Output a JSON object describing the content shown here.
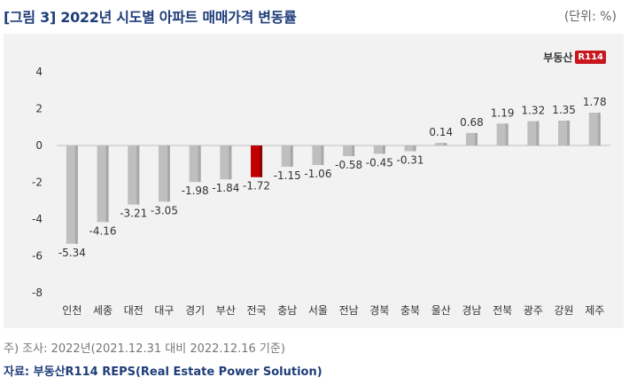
{
  "title": "[그림 3] 2022년 시도별 아파트 매매가격 변동률",
  "unit": "(단위: %)",
  "logo": {
    "text": "부동산",
    "box": "R114"
  },
  "note": "주) 조사: 2022년(2021.12.31 대비 2022.12.16 기준)",
  "source": "자료: 부동산R114 REPS(Real Estate Power Solution)",
  "colors": {
    "bar": "#bfbfbf",
    "highlight": "#c00000",
    "title": "#1f3d7a"
  },
  "chart_data": {
    "type": "bar",
    "categories": [
      "인천",
      "세종",
      "대전",
      "대구",
      "경기",
      "부산",
      "전국",
      "충남",
      "서울",
      "전남",
      "경북",
      "충북",
      "울산",
      "경남",
      "전북",
      "광주",
      "강원",
      "제주"
    ],
    "values": [
      -5.34,
      -4.16,
      -3.21,
      -3.05,
      -1.98,
      -1.84,
      -1.72,
      -1.15,
      -1.06,
      -0.58,
      -0.45,
      -0.31,
      0.14,
      0.68,
      1.19,
      1.32,
      1.35,
      1.78
    ],
    "labels": [
      "-5.34",
      "-4.16",
      "-3.21",
      "-3.05",
      "-1.98",
      "-1.84",
      "-1.72",
      "-1.15",
      "-1.06",
      "-0.58",
      "-0.45",
      "-0.31",
      "0.14",
      "0.68",
      "1.19",
      "1.32",
      "1.35",
      "1.78"
    ],
    "highlight": "전국",
    "ylim": [
      -8,
      4
    ],
    "yticks": [
      "-8",
      "-6",
      "-4",
      "-2",
      "0",
      "2",
      "4"
    ],
    "ytick_values": [
      -8,
      -6,
      -4,
      -2,
      0,
      2,
      4
    ],
    "grid": false,
    "legend": "none"
  }
}
